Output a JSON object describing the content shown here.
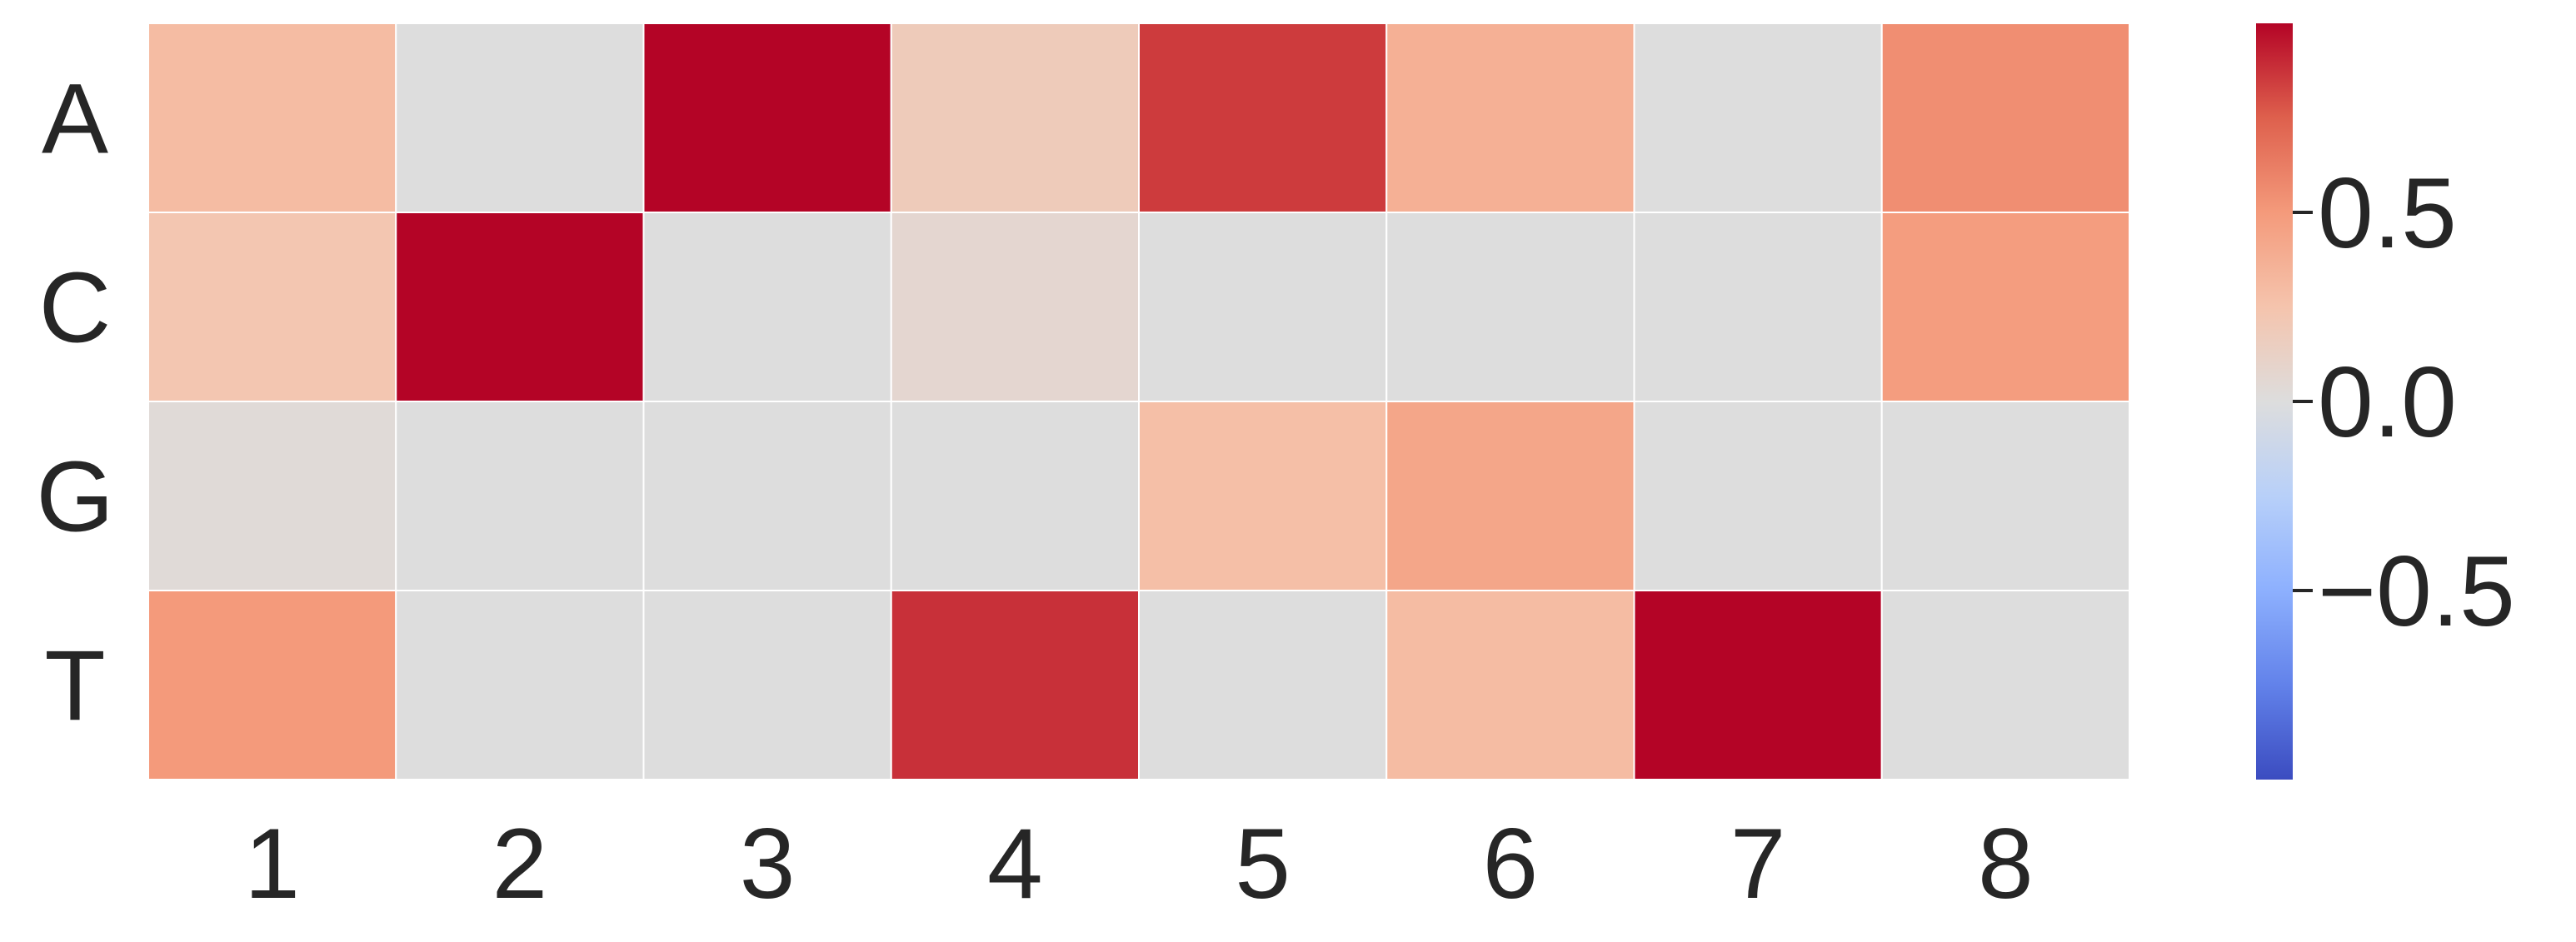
{
  "chart_data": {
    "type": "heatmap",
    "title": "",
    "xlabel": "",
    "ylabel": "",
    "x_categories": [
      "1",
      "2",
      "3",
      "4",
      "5",
      "6",
      "7",
      "8"
    ],
    "y_categories": [
      "A",
      "C",
      "G",
      "T"
    ],
    "values": [
      [
        0.3,
        0.0,
        1.0,
        0.18,
        0.85,
        0.37,
        0.0,
        0.55
      ],
      [
        0.23,
        1.0,
        0.0,
        0.07,
        0.0,
        0.0,
        0.0,
        0.48
      ],
      [
        0.03,
        0.0,
        0.0,
        0.0,
        0.28,
        0.43,
        0.0,
        0.0
      ],
      [
        0.5,
        0.0,
        0.0,
        0.88,
        0.0,
        0.3,
        1.0,
        0.0
      ]
    ],
    "colormap": "coolwarm",
    "vmin": -1.0,
    "vmax": 1.0,
    "colorbar": {
      "ticks": [
        0.5,
        0.0,
        -0.5
      ],
      "tick_labels": [
        "0.5",
        "0.0",
        "−0.5"
      ]
    },
    "grid": true,
    "legend": "colorbar-right",
    "colors": {
      "text": "#262626",
      "cell_border": "#ffffff"
    }
  }
}
